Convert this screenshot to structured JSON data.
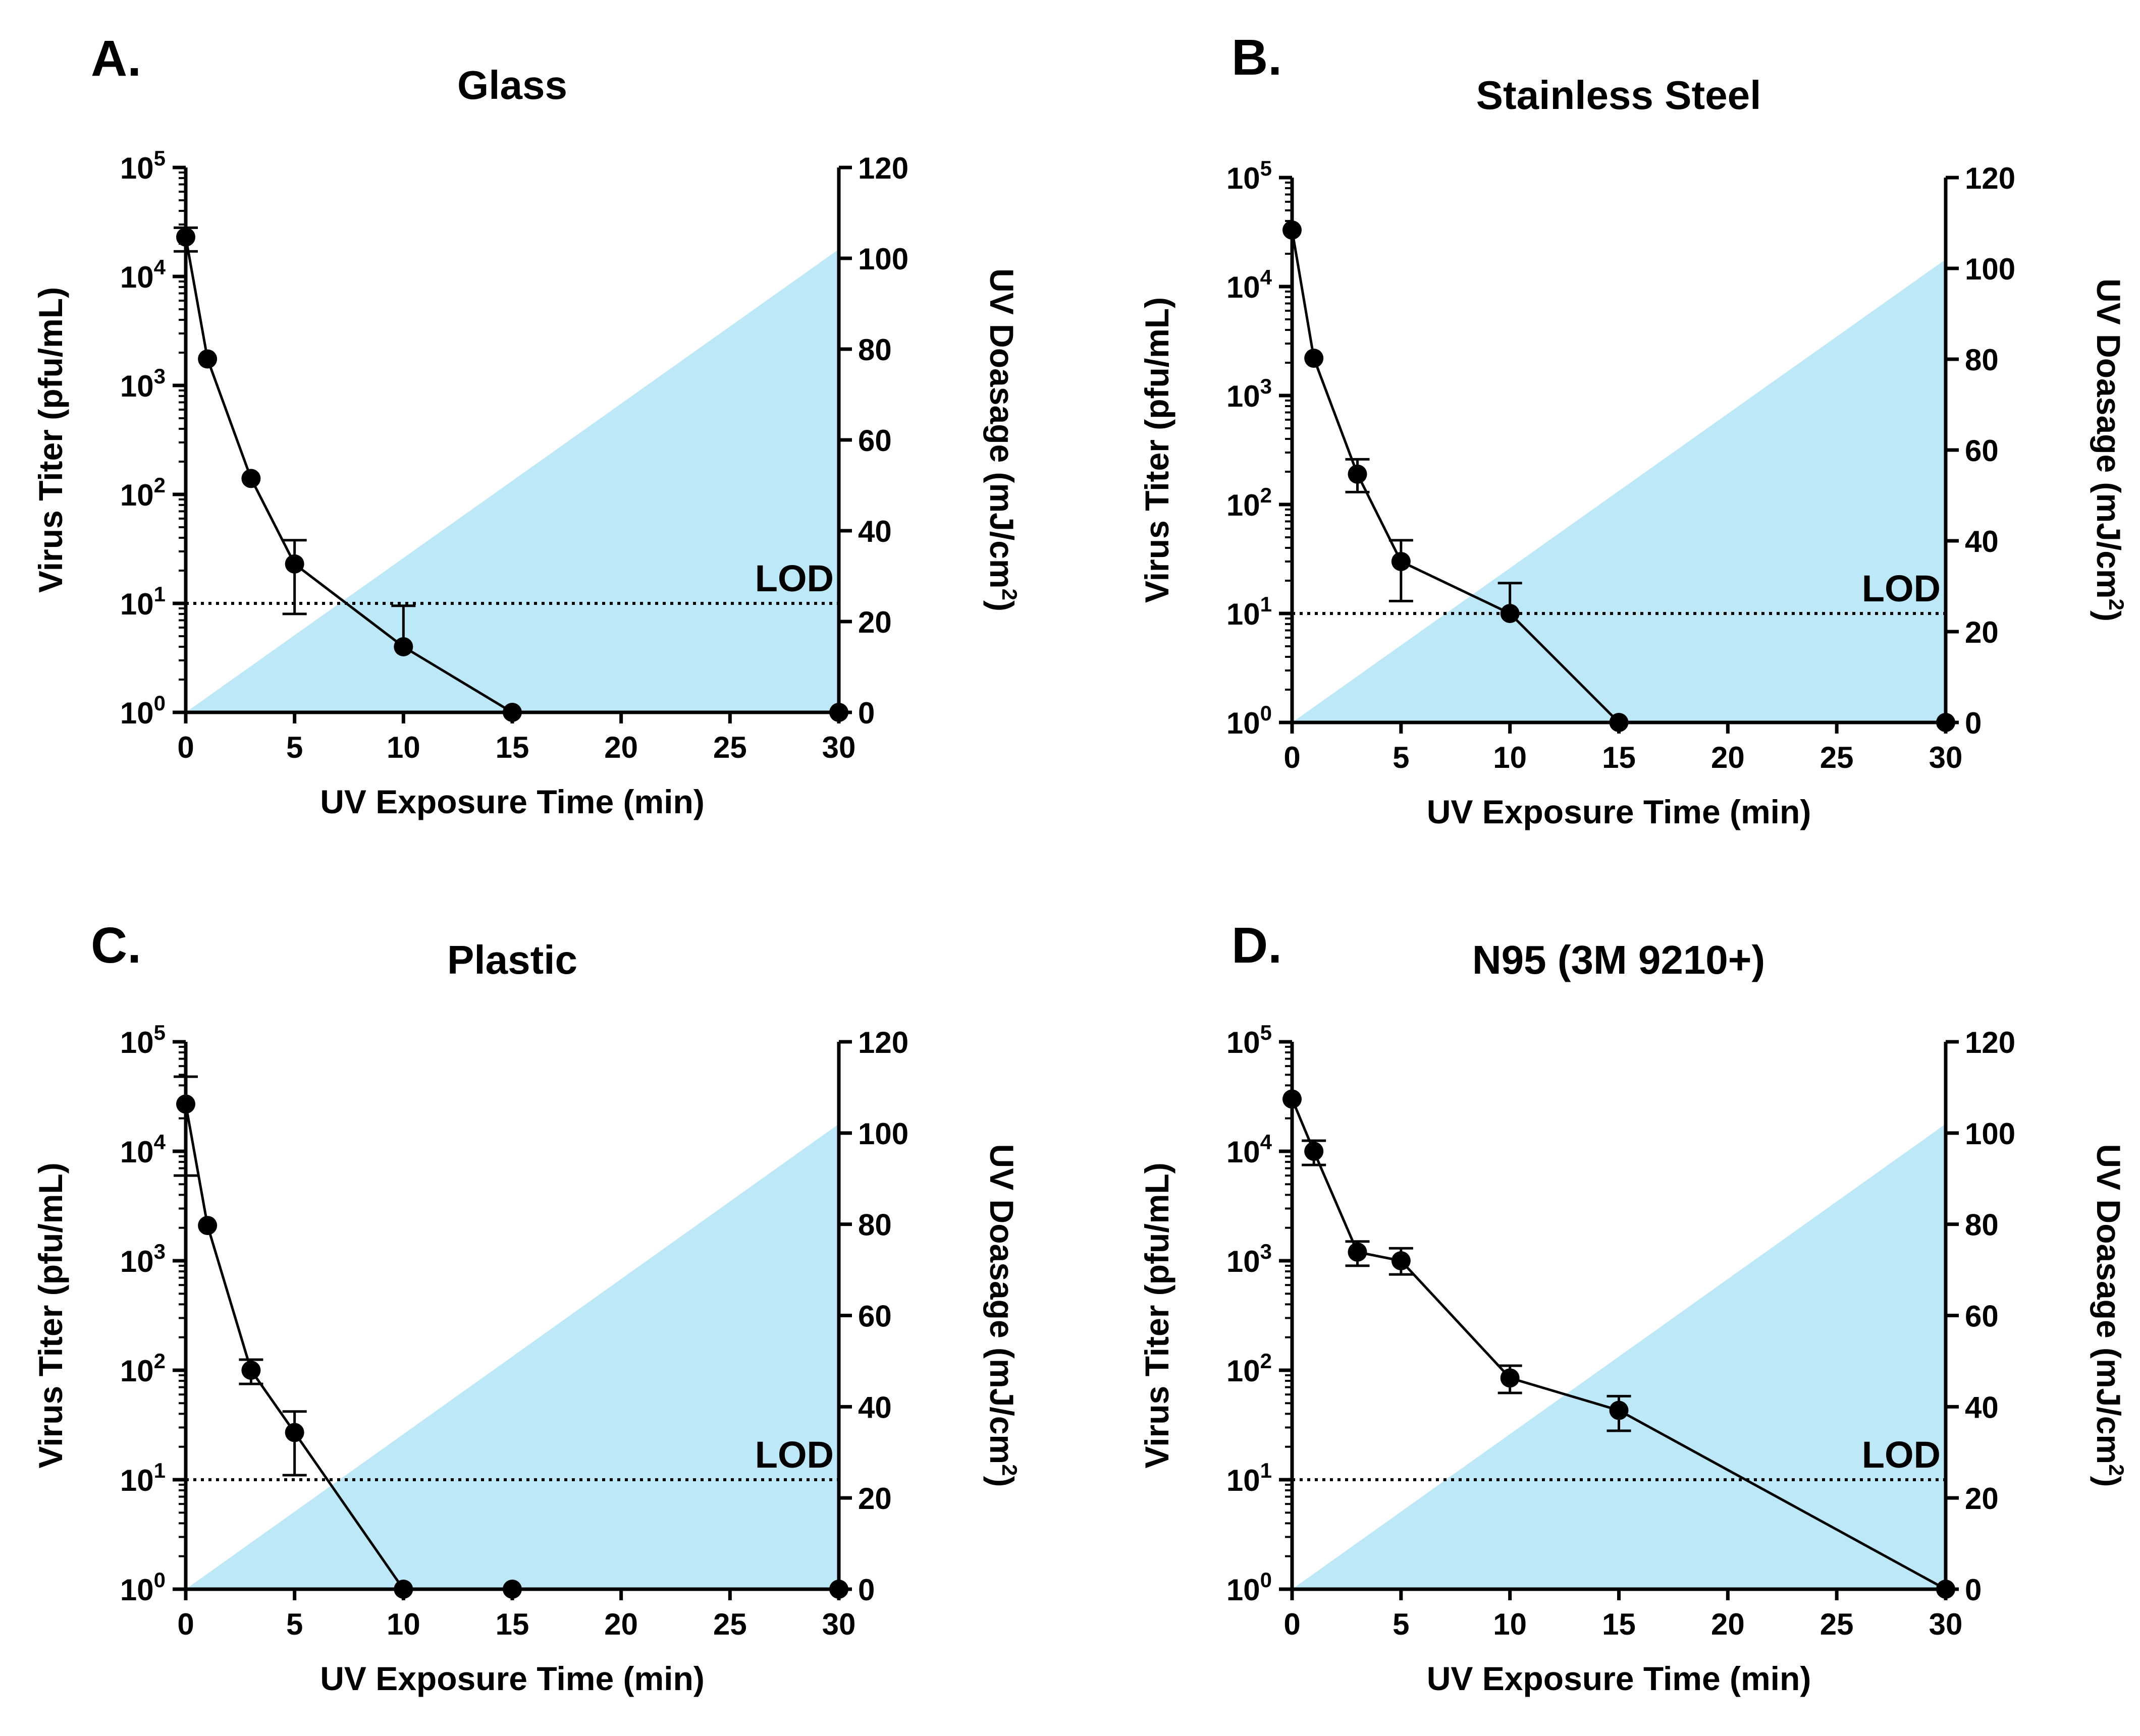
{
  "figure": {
    "colors": {
      "dose_fill": "#bde8f7",
      "line": "#000000",
      "marker": "#000000",
      "lod_line": "#000000"
    }
  },
  "chart_data": [
    {
      "panel": "A.",
      "title": "Glass",
      "type": "line",
      "xlabel": "UV Exposure Time (min)",
      "ylabel": "Virus Titer (pfu/mL)",
      "y2label": "UV Doasage (mJ/cm2)",
      "y2label_base": "UV Doasage (mJ/cm",
      "y2label_sup": "2",
      "y2label_close": ")",
      "xlim": [
        0,
        30
      ],
      "ylim": [
        1,
        100000
      ],
      "yscale": "log",
      "y2lim": [
        0,
        120
      ],
      "xticks": [
        "0",
        "5",
        "10",
        "15",
        "20",
        "25",
        "30"
      ],
      "yticks": [
        {
          "base": "10",
          "exp": "0"
        },
        {
          "base": "10",
          "exp": "1"
        },
        {
          "base": "10",
          "exp": "2"
        },
        {
          "base": "10",
          "exp": "3"
        },
        {
          "base": "10",
          "exp": "4"
        },
        {
          "base": "10",
          "exp": "5"
        }
      ],
      "y2ticks": [
        "0",
        "20",
        "40",
        "60",
        "80",
        "100",
        "120"
      ],
      "lod": {
        "label": "LOD",
        "value": 10
      },
      "dose_area": {
        "x": [
          0,
          30
        ],
        "y": [
          0,
          102
        ]
      },
      "series": [
        {
          "name": "Virus Titer",
          "x": [
            0,
            1,
            3,
            5,
            10,
            15,
            30
          ],
          "y": [
            23000,
            1750,
            140,
            23,
            4,
            1,
            1
          ],
          "err_low": [
            17000,
            null,
            null,
            8,
            null,
            null,
            null
          ],
          "err_high": [
            28000,
            null,
            null,
            38,
            9.5,
            null,
            null
          ]
        }
      ]
    },
    {
      "panel": "B.",
      "title": "Stainless Steel",
      "type": "line",
      "xlabel": "UV Exposure Time (min)",
      "ylabel": "Virus Titer (pfu/mL)",
      "y2label": "UV Doasage (mJ/cm2)",
      "y2label_base": "UV Doasage (mJ/cm",
      "y2label_sup": "2",
      "y2label_close": ")",
      "xlim": [
        0,
        30
      ],
      "ylim": [
        1,
        100000
      ],
      "yscale": "log",
      "y2lim": [
        0,
        120
      ],
      "xticks": [
        "0",
        "5",
        "10",
        "15",
        "20",
        "25",
        "30"
      ],
      "yticks": [
        {
          "base": "10",
          "exp": "0"
        },
        {
          "base": "10",
          "exp": "1"
        },
        {
          "base": "10",
          "exp": "2"
        },
        {
          "base": "10",
          "exp": "3"
        },
        {
          "base": "10",
          "exp": "4"
        },
        {
          "base": "10",
          "exp": "5"
        }
      ],
      "y2ticks": [
        "0",
        "20",
        "40",
        "60",
        "80",
        "100",
        "120"
      ],
      "lod": {
        "label": "LOD",
        "value": 10
      },
      "dose_area": {
        "x": [
          0,
          30
        ],
        "y": [
          0,
          102
        ]
      },
      "series": [
        {
          "name": "Virus Titer",
          "x": [
            0,
            1,
            3,
            5,
            10,
            15,
            30
          ],
          "y": [
            33000,
            2200,
            190,
            30,
            10,
            1,
            1
          ],
          "err_low": [
            null,
            null,
            130,
            13,
            null,
            null,
            null
          ],
          "err_high": [
            null,
            null,
            260,
            47,
            19,
            null,
            null
          ]
        }
      ]
    },
    {
      "panel": "C.",
      "title": "Plastic",
      "type": "line",
      "xlabel": "UV Exposure Time (min)",
      "ylabel": "Virus Titer (pfu/mL)",
      "y2label": "UV Doasage (mJ/cm2)",
      "y2label_base": "UV Doasage (mJ/cm",
      "y2label_sup": "2",
      "y2label_close": ")",
      "xlim": [
        0,
        30
      ],
      "ylim": [
        1,
        100000
      ],
      "yscale": "log",
      "y2lim": [
        0,
        120
      ],
      "xticks": [
        "0",
        "5",
        "10",
        "15",
        "20",
        "25",
        "30"
      ],
      "yticks": [
        {
          "base": "10",
          "exp": "0"
        },
        {
          "base": "10",
          "exp": "1"
        },
        {
          "base": "10",
          "exp": "2"
        },
        {
          "base": "10",
          "exp": "3"
        },
        {
          "base": "10",
          "exp": "4"
        },
        {
          "base": "10",
          "exp": "5"
        }
      ],
      "y2ticks": [
        "0",
        "20",
        "40",
        "60",
        "80",
        "100",
        "120"
      ],
      "lod": {
        "label": "LOD",
        "value": 10
      },
      "dose_area": {
        "x": [
          0,
          30
        ],
        "y": [
          0,
          102
        ]
      },
      "series": [
        {
          "name": "Virus Titer",
          "x": [
            0,
            1,
            3,
            5,
            10,
            15,
            30
          ],
          "y": [
            27000,
            2100,
            100,
            27,
            1,
            1,
            1
          ],
          "err_low": [
            6000,
            null,
            75,
            11,
            null,
            null,
            null
          ],
          "err_high": [
            48000,
            null,
            125,
            42,
            null,
            null,
            null
          ]
        }
      ]
    },
    {
      "panel": "D.",
      "title": "N95 (3M 9210+)",
      "type": "line",
      "xlabel": "UV Exposure Time (min)",
      "ylabel": "Virus Titer (pfu/mL)",
      "y2label": "UV Doasage (mJ/cm2)",
      "y2label_base": "UV Doasage (mJ/cm",
      "y2label_sup": "2",
      "y2label_close": ")",
      "xlim": [
        0,
        30
      ],
      "ylim": [
        1,
        100000
      ],
      "yscale": "log",
      "y2lim": [
        0,
        120
      ],
      "xticks": [
        "0",
        "5",
        "10",
        "15",
        "20",
        "25",
        "30"
      ],
      "yticks": [
        {
          "base": "10",
          "exp": "0"
        },
        {
          "base": "10",
          "exp": "1"
        },
        {
          "base": "10",
          "exp": "2"
        },
        {
          "base": "10",
          "exp": "3"
        },
        {
          "base": "10",
          "exp": "4"
        },
        {
          "base": "10",
          "exp": "5"
        }
      ],
      "y2ticks": [
        "0",
        "20",
        "40",
        "60",
        "80",
        "100",
        "120"
      ],
      "lod": {
        "label": "LOD",
        "value": 10
      },
      "dose_area": {
        "x": [
          0,
          30
        ],
        "y": [
          0,
          102
        ]
      },
      "series": [
        {
          "name": "Virus Titer",
          "x": [
            0,
            1,
            3,
            5,
            10,
            15,
            30
          ],
          "y": [
            30000,
            10000,
            1200,
            1000,
            85,
            43,
            1
          ],
          "err_low": [
            null,
            7500,
            900,
            750,
            62,
            28,
            null
          ],
          "err_high": [
            null,
            12500,
            1500,
            1300,
            110,
            58,
            null
          ]
        }
      ]
    }
  ]
}
